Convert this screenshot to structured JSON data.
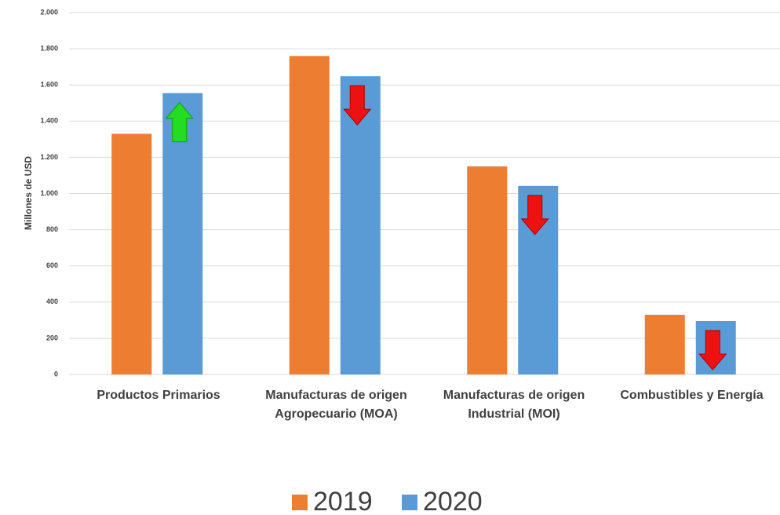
{
  "chart_data": {
    "type": "bar",
    "y_label": "Millones de USD",
    "categories": [
      "Productos Primarios",
      "Manufacturas de origen Agropecuario (MOA)",
      "Manufacturas de origen Industrial (MOI)",
      "Combustibles y Energía"
    ],
    "series": [
      {
        "name": "2019",
        "color": "#ed7d31",
        "values": [
          1330,
          1760,
          1150,
          330
        ]
      },
      {
        "name": "2020",
        "color": "#5b9bd5",
        "values": [
          1555,
          1648,
          1042,
          295
        ]
      }
    ],
    "ylim": [
      0,
      2000
    ],
    "yticks": [
      0,
      200,
      400,
      600,
      800,
      {
        "value": 1000,
        "label": "1.000"
      },
      {
        "value": 1200,
        "label": "1.200"
      },
      {
        "value": 1400,
        "label": "1.400"
      },
      {
        "value": 1600,
        "label": "1.600"
      },
      {
        "value": 1800,
        "label": "1.800"
      },
      {
        "value": 2000,
        "label": "2.000"
      }
    ],
    "grid": true,
    "legend": "bottom"
  }
}
